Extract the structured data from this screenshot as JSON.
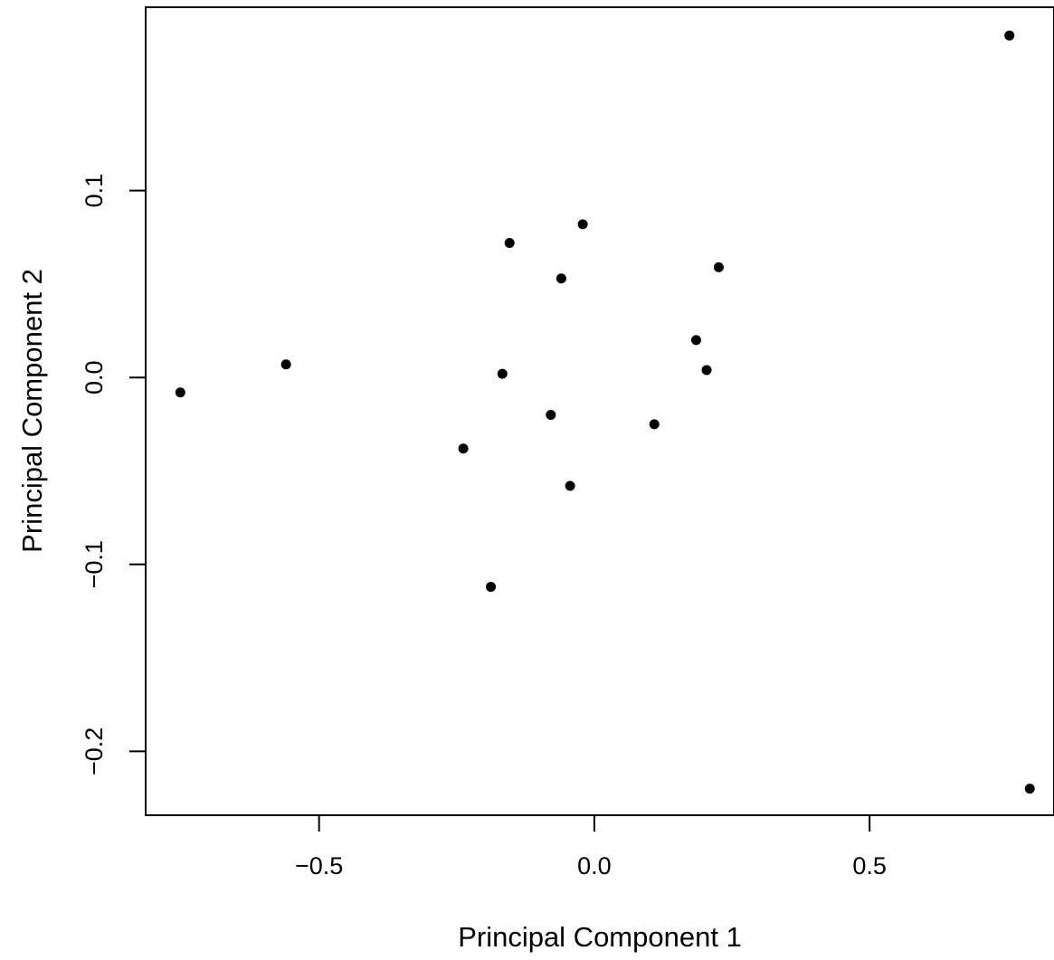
{
  "chart_data": {
    "type": "scatter",
    "xlabel": "Principal Component 1",
    "ylabel": "Principal Component 2",
    "xlim": [
      -0.815,
      0.835
    ],
    "ylim": [
      -0.2342,
      0.1981
    ],
    "x_ticks": [
      -0.5,
      0.0,
      0.5
    ],
    "x_tick_labels": [
      "−0.5",
      "0.0",
      "0.5"
    ],
    "y_ticks": [
      -0.2,
      -0.1,
      0.0,
      0.1
    ],
    "y_tick_labels": [
      "−0.2",
      "−0.1",
      "0.0",
      "0.1"
    ],
    "grid": false,
    "legend": "none",
    "point_color": "#000000",
    "points": [
      {
        "x": -0.752,
        "y": -0.008
      },
      {
        "x": -0.56,
        "y": 0.007
      },
      {
        "x": -0.238,
        "y": -0.038
      },
      {
        "x": -0.188,
        "y": -0.112
      },
      {
        "x": -0.167,
        "y": 0.002
      },
      {
        "x": -0.154,
        "y": 0.072
      },
      {
        "x": -0.079,
        "y": -0.02
      },
      {
        "x": -0.06,
        "y": 0.053
      },
      {
        "x": -0.044,
        "y": -0.058
      },
      {
        "x": -0.021,
        "y": 0.082
      },
      {
        "x": 0.109,
        "y": -0.025
      },
      {
        "x": 0.185,
        "y": 0.02
      },
      {
        "x": 0.204,
        "y": 0.004
      },
      {
        "x": 0.226,
        "y": 0.059
      },
      {
        "x": 0.754,
        "y": 0.183
      },
      {
        "x": 0.791,
        "y": -0.22
      }
    ]
  }
}
